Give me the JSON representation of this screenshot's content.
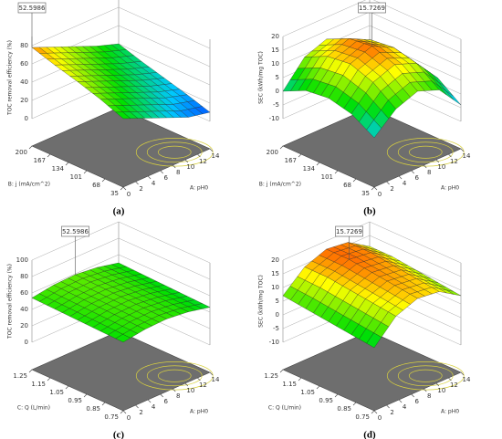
{
  "chart_data": [
    {
      "type": "surface",
      "panel_label": "(a)",
      "annotation": "52.5986",
      "x_label": "A: pH0",
      "y_label": "B: j (mA/cm^2)",
      "z_label": "TOC removal efficiency (%)",
      "x": [
        0,
        3.5,
        7,
        10.5,
        14
      ],
      "y": [
        35,
        76.25,
        117.5,
        158.75,
        200
      ],
      "z": [
        [
          45,
          35,
          25,
          15,
          10
        ],
        [
          55,
          45,
          35,
          25,
          18
        ],
        [
          63,
          53,
          43,
          33,
          25
        ],
        [
          70,
          60,
          50,
          40,
          32
        ],
        [
          78,
          68,
          58,
          48,
          40
        ]
      ],
      "xlim": [
        0,
        14
      ],
      "ylim": [
        35,
        200
      ],
      "zlim": [
        0,
        90
      ],
      "xticks": [
        0,
        2,
        4,
        6,
        8,
        10,
        12,
        14
      ],
      "yticks": [
        35,
        68,
        101,
        134,
        167,
        200
      ],
      "zticks": [
        0,
        20,
        40,
        60,
        80
      ],
      "colormap": [
        "#0000ff",
        "#00c8ff",
        "#00e000",
        "#ffff00",
        "#ff0000"
      ]
    },
    {
      "type": "surface",
      "panel_label": "(b)",
      "annotation": "15.7269",
      "x_label": "A: pH0",
      "y_label": "B: j (mA/cm^2)",
      "z_label": "SEC (kWh/mg TOC)",
      "x": [
        0,
        3.5,
        7,
        10.5,
        14
      ],
      "y": [
        35,
        76.25,
        117.5,
        158.75,
        200
      ],
      "z": [
        [
          -2,
          5,
          8,
          5,
          -4
        ],
        [
          3,
          11,
          14,
          11,
          2
        ],
        [
          5,
          14,
          17,
          13,
          4
        ],
        [
          4,
          13,
          16,
          12,
          3
        ],
        [
          0,
          9,
          12,
          8,
          -2
        ]
      ],
      "xlim": [
        0,
        14
      ],
      "ylim": [
        35,
        200
      ],
      "zlim": [
        -10,
        20
      ],
      "xticks": [
        0,
        2,
        4,
        6,
        8,
        10,
        12,
        14
      ],
      "yticks": [
        35,
        68,
        101,
        134,
        167,
        200
      ],
      "zticks": [
        -10,
        -5,
        0,
        5,
        10,
        15,
        20
      ],
      "colormap": [
        "#0000ff",
        "#00c8ff",
        "#00e000",
        "#ffff00",
        "#ff0000"
      ]
    },
    {
      "type": "surface",
      "panel_label": "(c)",
      "annotation": "52.5986",
      "x_label": "A: pH0",
      "y_label": "C: Q (L/min)",
      "z_label": "TOC removal efficiency (%)",
      "x": [
        0,
        3.5,
        7,
        10.5,
        14
      ],
      "y": [
        0.75,
        0.875,
        1.0,
        1.125,
        1.25
      ],
      "z": [
        [
          50,
          54,
          55,
          52,
          46
        ],
        [
          51,
          55,
          56,
          53,
          47
        ],
        [
          52,
          56,
          57,
          54,
          48
        ],
        [
          53,
          57,
          58,
          55,
          49
        ],
        [
          54,
          58,
          59,
          56,
          50
        ]
      ],
      "xlim": [
        0,
        14
      ],
      "ylim": [
        0.75,
        1.25
      ],
      "zlim": [
        0,
        100
      ],
      "xticks": [
        0,
        2,
        4,
        6,
        8,
        10,
        12,
        14
      ],
      "yticks": [
        0.75,
        0.85,
        0.95,
        1.05,
        1.15,
        1.25
      ],
      "zticks": [
        0,
        20,
        40,
        60,
        80,
        100
      ],
      "colormap": [
        "#0000ff",
        "#00c8ff",
        "#00e000",
        "#ffff00",
        "#ff0000"
      ]
    },
    {
      "type": "surface",
      "panel_label": "(d)",
      "annotation": "15.7269",
      "x_label": "A: pH0",
      "y_label": "C: Q (L/min)",
      "z_label": "SEC (kWh/mg TOC)",
      "x": [
        0,
        3.5,
        7,
        10.5,
        14
      ],
      "y": [
        0.75,
        0.875,
        1.0,
        1.125,
        1.25
      ],
      "z": [
        [
          3,
          11,
          14,
          13,
          8
        ],
        [
          4,
          12,
          15,
          14,
          9
        ],
        [
          5,
          13,
          16,
          15,
          10
        ],
        [
          6,
          14,
          17,
          16,
          11
        ],
        [
          7,
          14,
          17,
          16,
          11
        ]
      ],
      "xlim": [
        0,
        14
      ],
      "ylim": [
        0.75,
        1.25
      ],
      "zlim": [
        -10,
        20
      ],
      "xticks": [
        0,
        2,
        4,
        6,
        8,
        10,
        12,
        14
      ],
      "yticks": [
        0.75,
        0.85,
        0.95,
        1.05,
        1.15,
        1.25
      ],
      "zticks": [
        -10,
        -5,
        0,
        5,
        10,
        15,
        20
      ],
      "colormap": [
        "#0000ff",
        "#00c8ff",
        "#00e000",
        "#ffff00",
        "#ff0000"
      ]
    }
  ]
}
